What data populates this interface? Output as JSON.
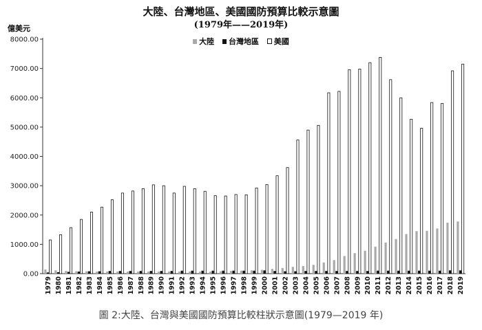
{
  "chart_data": {
    "type": "bar",
    "title": "大陸、台灣地區、美國國防預算比較示意圖",
    "subtitle": "(1979年——2019年)",
    "unit_label": "億美元",
    "ylim": [
      0,
      8000
    ],
    "yticks": [
      "0.00",
      "1000.00",
      "2000.00",
      "3000.00",
      "4000.00",
      "5000.00",
      "6000.00",
      "7000.00",
      "8000.00"
    ],
    "grid": false,
    "legend_position": "top-center",
    "categories": [
      "1979",
      "1980",
      "1981",
      "1982",
      "1983",
      "1984",
      "1985",
      "1986",
      "1987",
      "1988",
      "1989",
      "1990",
      "1991",
      "1992",
      "1993",
      "1994",
      "1995",
      "1996",
      "1997",
      "1998",
      "1999",
      "2000",
      "2001",
      "2002",
      "2003",
      "2004",
      "2005",
      "2006",
      "2007",
      "2008",
      "2009",
      "2010",
      "2011",
      "2012",
      "2013",
      "2014",
      "2015",
      "2016",
      "2017",
      "2018",
      "2019"
    ],
    "series": [
      {
        "name": "大陸",
        "color": "#aaaaaa",
        "values": [
          140,
          110,
          90,
          80,
          80,
          70,
          70,
          70,
          70,
          70,
          70,
          70,
          70,
          70,
          70,
          70,
          70,
          80,
          90,
          100,
          110,
          130,
          160,
          190,
          230,
          260,
          300,
          380,
          460,
          600,
          700,
          780,
          920,
          1060,
          1180,
          1350,
          1450,
          1460,
          1540,
          1740,
          1780
        ]
      },
      {
        "name": "台灣地區",
        "color": "#111111",
        "values": [
          40,
          50,
          60,
          70,
          80,
          80,
          90,
          90,
          90,
          90,
          90,
          90,
          90,
          100,
          100,
          100,
          100,
          100,
          100,
          100,
          100,
          110,
          90,
          80,
          80,
          90,
          90,
          90,
          90,
          90,
          90,
          90,
          100,
          100,
          100,
          100,
          100,
          100,
          100,
          110,
          110
        ]
      },
      {
        "name": "美國",
        "color": "#ffffff",
        "values": [
          1150,
          1330,
          1570,
          1850,
          2100,
          2270,
          2520,
          2750,
          2820,
          2900,
          3030,
          3000,
          2750,
          2980,
          2900,
          2810,
          2660,
          2650,
          2700,
          2690,
          2920,
          3040,
          3340,
          3620,
          4560,
          4900,
          5060,
          6170,
          6220,
          6960,
          6980,
          7200,
          7380,
          6620,
          6000,
          5270,
          4960,
          5840,
          5810,
          6920,
          7150
        ]
      }
    ]
  },
  "caption": "圖 2:大陸、台灣與美國國防預算比較柱狀示意圖(1979—2019 年)"
}
